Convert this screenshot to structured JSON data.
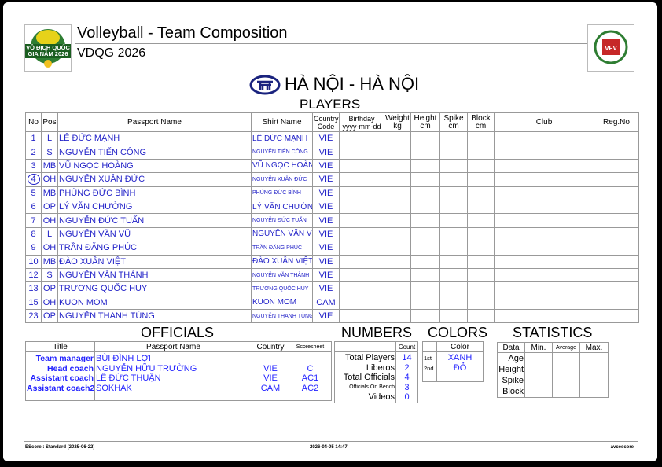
{
  "header": {
    "title": "Volleyball - Team Composition",
    "competition": "VDQG 2026",
    "left_logo_text": "VÔ ĐỊCH QUỐC GIA NĂM 2026",
    "right_logo_text": "VFV",
    "team": "HÀ NỘI - HÀ NỘI"
  },
  "players": {
    "title": "PLAYERS",
    "columns": {
      "no": "No",
      "pos": "Pos",
      "passport": "Passport Name",
      "shirt": "Shirt Name",
      "country1": "Country",
      "country2": "Code",
      "birthday1": "Birthday",
      "birthday2": "yyyy-mm-dd",
      "weight1": "Weight",
      "weight2": "kg",
      "height1": "Height",
      "height2": "cm",
      "spike1": "Spike",
      "spike2": "cm",
      "block1": "Block",
      "block2": "cm",
      "club": "Club",
      "reg": "Reg.No"
    },
    "rows": [
      {
        "no": "1",
        "pos": "L",
        "name": "LÊ ĐỨC MẠNH",
        "shirt": "LÊ ĐỨC MẠNH",
        "country": "VIE"
      },
      {
        "no": "2",
        "pos": "S",
        "name": "NGUYỄN TIẾN CÔNG",
        "shirt": "NGUYỄN TIẾN CÔNG",
        "country": "VIE"
      },
      {
        "no": "3",
        "pos": "MB",
        "name": "VŨ NGỌC HOÀNG",
        "shirt": "VŨ NGỌC HOÀNG",
        "country": "VIE"
      },
      {
        "no": "4",
        "pos": "OH",
        "name": "NGUYỄN XUÂN ĐỨC",
        "shirt": "NGUYỄN XUÂN ĐỨC",
        "country": "VIE",
        "captain": true
      },
      {
        "no": "5",
        "pos": "MB",
        "name": "PHÙNG ĐỨC BÌNH",
        "shirt": "PHÙNG ĐỨC BÌNH",
        "country": "VIE"
      },
      {
        "no": "6",
        "pos": "OP",
        "name": "LÝ VĂN CHƯỜNG",
        "shirt": "LÝ VĂN CHƯỜNG",
        "country": "VIE"
      },
      {
        "no": "7",
        "pos": "OH",
        "name": "NGUYỄN ĐỨC TUẤN",
        "shirt": "NGUYỄN ĐỨC TUẤN",
        "country": "VIE"
      },
      {
        "no": "8",
        "pos": "L",
        "name": "NGUYỄN VĂN VŨ",
        "shirt": "NGUYỄN VĂN VŨ",
        "country": "VIE"
      },
      {
        "no": "9",
        "pos": "OH",
        "name": "TRẦN ĐĂNG PHÚC",
        "shirt": "TRẦN ĐĂNG PHÚC",
        "country": "VIE"
      },
      {
        "no": "10",
        "pos": "MB",
        "name": "ĐÀO XUÂN VIỆT",
        "shirt": "ĐÀO XUÂN VIỆT",
        "country": "VIE"
      },
      {
        "no": "12",
        "pos": "S",
        "name": "NGUYỄN VĂN THÀNH",
        "shirt": "NGUYỄN VĂN THÀNH",
        "country": "VIE"
      },
      {
        "no": "13",
        "pos": "OP",
        "name": "TRƯƠNG QUỐC HUY",
        "shirt": "TRƯƠNG QUỐC HUY",
        "country": "VIE"
      },
      {
        "no": "15",
        "pos": "OH",
        "name": "KUON MOM",
        "shirt": "KUON MOM",
        "country": "CAM"
      },
      {
        "no": "23",
        "pos": "OP",
        "name": "NGUYỄN THANH TÙNG",
        "shirt": "NGUYỄN THANH TÙNG",
        "country": "VIE"
      }
    ]
  },
  "officials": {
    "title": "OFFICIALS",
    "columns": {
      "title": "Title",
      "passport": "Passport Name",
      "country": "Country",
      "scoresheet": "Scoresheet"
    },
    "rows": [
      {
        "title": "Team manager",
        "name": "BÙI ĐÌNH LỢI",
        "country": "",
        "code": ""
      },
      {
        "title": "Head coach",
        "name": "NGUYỄN HỮU TRƯỜNG",
        "country": "VIE",
        "code": "C"
      },
      {
        "title": "Assistant coach",
        "name": "LÊ ĐỨC THUẬN",
        "country": "VIE",
        "code": "AC1"
      },
      {
        "title": "Assistant coach2",
        "name": "SOKHAK",
        "country": "CAM",
        "code": "AC2"
      }
    ]
  },
  "numbers": {
    "title": "NUMBERS",
    "count_label": "Count",
    "rows": [
      {
        "label": "Total Players",
        "value": "14"
      },
      {
        "label": "Liberos",
        "value": "2"
      },
      {
        "label": "Total Officials",
        "value": "4"
      },
      {
        "label": "Officials On Bench",
        "value": "3"
      },
      {
        "label": "Videos",
        "value": "0"
      }
    ]
  },
  "colors": {
    "title": "COLORS",
    "color_label": "Color",
    "rows": [
      {
        "label": "1st",
        "value": "XANH"
      },
      {
        "label": "2nd",
        "value": "ĐỎ"
      }
    ]
  },
  "statistics": {
    "title": "STATISTICS",
    "columns": [
      "Data",
      "Min.",
      "Average",
      "Max."
    ],
    "rows": [
      "Age",
      "Height",
      "Spike",
      "Block"
    ]
  },
  "footer": {
    "left": "EScore : Standard (2025-06-22)",
    "center": "2026-04-05 14:47",
    "right": "avcescore"
  },
  "colors_theme": {
    "text_blue": "#2323ff",
    "border": "#999999"
  }
}
